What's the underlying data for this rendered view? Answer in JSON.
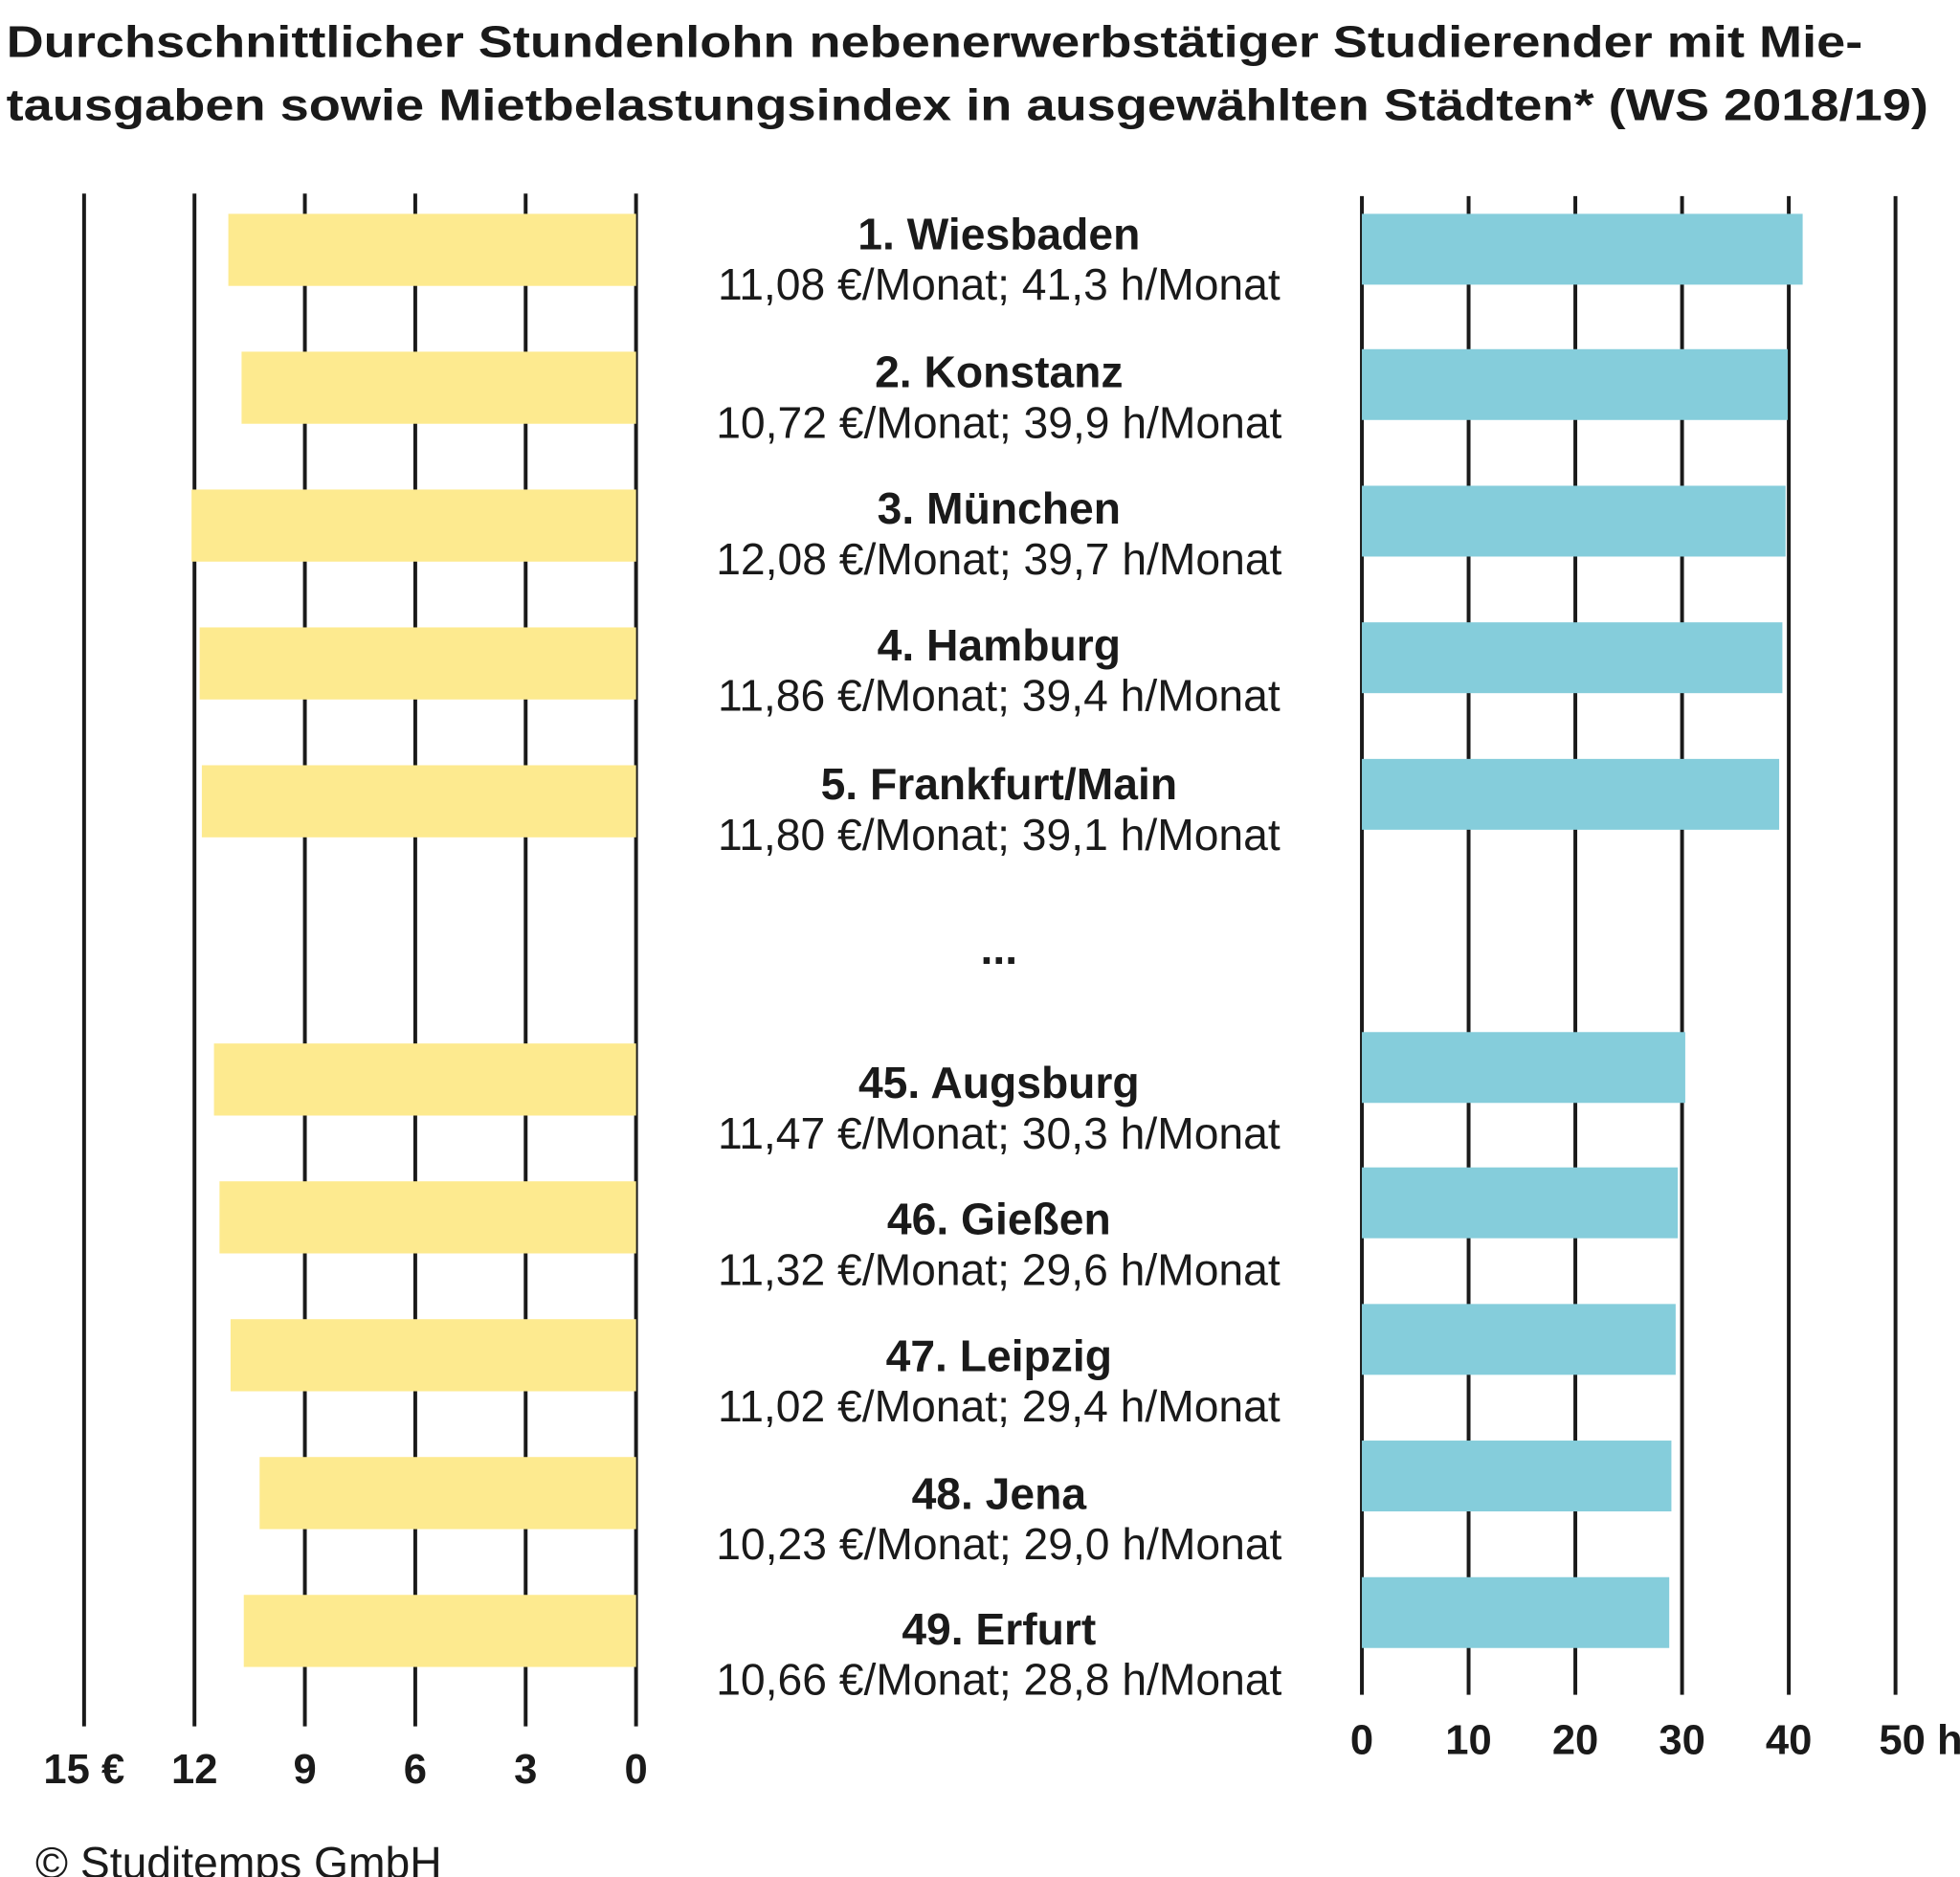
{
  "chart_data": {
    "type": "bar",
    "title_lines": [
      "Durchschnittlicher Stundenlohn nebenerwerbstätiger Studierender mit Mie-",
      "tausgaben sowie Mietbelastungsindex in ausgewählten Städten* (WS 2018/19)"
    ],
    "categories": [
      "1. Wiesbaden",
      "2. Konstanz",
      "3. München",
      "4. Hamburg",
      "5. Frankfurt/Main",
      "45. Augsburg",
      "46. Gießen",
      "47. Leipzig",
      "48. Jena",
      "49. Erfurt"
    ],
    "value_labels": [
      "11,08 €/Monat; 41,3 h/Monat",
      "10,72 €/Monat; 39,9 h/Monat",
      "12,08 €/Monat; 39,7 h/Monat",
      "11,86 €/Monat; 39,4 h/Monat",
      "11,80 €/Monat; 39,1 h/Monat",
      "11,47 €/Monat; 30,3 h/Monat",
      "11,32 €/Monat; 29,6 h/Monat",
      "11,02 €/Monat; 29,4 h/Monat",
      "10,23 €/Monat; 29,0 h/Monat",
      "10,66 €/Monat; 28,8 h/Monat"
    ],
    "gap_label": "...",
    "series": [
      {
        "values": [
          11.08,
          10.72,
          12.08,
          11.86,
          11.8,
          11.47,
          11.32,
          11.02,
          10.23,
          10.66
        ],
        "color": "#FDEA8F",
        "xlim": [
          15,
          0
        ],
        "ticks": [
          "15 €",
          "12",
          "9",
          "6",
          "3",
          "0"
        ]
      },
      {
        "values": [
          41.3,
          39.9,
          39.7,
          39.4,
          39.1,
          30.3,
          29.6,
          29.4,
          29.0,
          28.8
        ],
        "color": "#85CDDB",
        "xlim": [
          0,
          50
        ],
        "ticks": [
          "0",
          "10",
          "20",
          "30",
          "40",
          "50 h"
        ]
      }
    ],
    "grid": true,
    "source": "© Studitemps GmbH"
  }
}
